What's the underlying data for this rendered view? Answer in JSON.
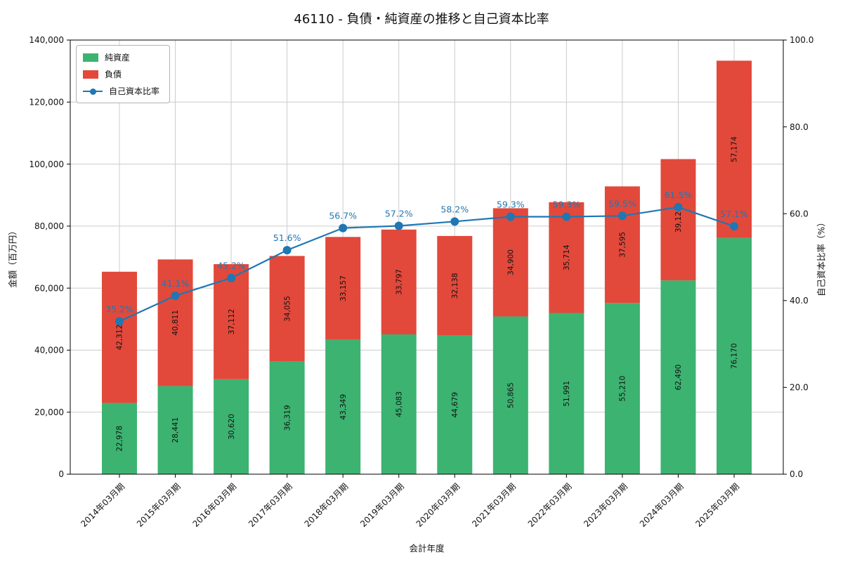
{
  "figure": {
    "title": "46110 - 負債・純資産の推移と自己資本比率",
    "xlabel": "会計年度",
    "ylabel_left": "金額（百万円）",
    "ylabel_right": "自己資本比率（%）"
  },
  "legend": {
    "items": [
      {
        "label": "純資産",
        "type": "patch",
        "color": "#3cb371"
      },
      {
        "label": "負債",
        "type": "patch",
        "color": "#e2493b"
      },
      {
        "label": "自己資本比率",
        "type": "line",
        "color": "#1f77b4"
      }
    ]
  },
  "chart_data": {
    "type": "bar",
    "stacked": true,
    "title": "46110 - 負債・純資産の推移と自己資本比率",
    "xlabel": "会計年度",
    "ylabel_left": "金額（百万円）",
    "ylabel_right": "自己資本比率（%）",
    "categories": [
      "2014年03月期",
      "2015年03月期",
      "2016年03月期",
      "2017年03月期",
      "2018年03月期",
      "2019年03月期",
      "2020年03月期",
      "2021年03月期",
      "2022年03月期",
      "2023年03月期",
      "2024年03月期",
      "2025年03月期"
    ],
    "series": [
      {
        "name": "純資産",
        "type": "bar",
        "axis": "left",
        "color": "#3cb371",
        "values": [
          22978,
          28441,
          30620,
          36319,
          43349,
          45083,
          44679,
          50865,
          51991,
          55210,
          62490,
          76170
        ]
      },
      {
        "name": "負債",
        "type": "bar",
        "axis": "left",
        "color": "#e2493b",
        "values": [
          42312,
          40811,
          37112,
          34055,
          33157,
          33797,
          32138,
          34900,
          35714,
          37595,
          39120,
          57174
        ]
      },
      {
        "name": "自己資本比率",
        "type": "line",
        "axis": "right",
        "color": "#1f77b4",
        "values": [
          35.2,
          41.1,
          45.2,
          51.6,
          56.7,
          57.2,
          58.2,
          59.3,
          59.3,
          59.5,
          61.5,
          57.1
        ]
      }
    ],
    "ylim_left": [
      0,
      140000
    ],
    "ylim_right": [
      0,
      100
    ],
    "yticks_left": [
      "0",
      "20,000",
      "40,000",
      "60,000",
      "80,000",
      "100,000",
      "120,000",
      "140,000"
    ],
    "yticks_right": [
      "0.0",
      "20.0",
      "40.0",
      "60.0",
      "80.0",
      "100.0"
    ],
    "grid": true,
    "legend_position": "upper left",
    "colors": {
      "grid": "#cccccc",
      "spine": "#000000",
      "text": "#111111"
    }
  }
}
